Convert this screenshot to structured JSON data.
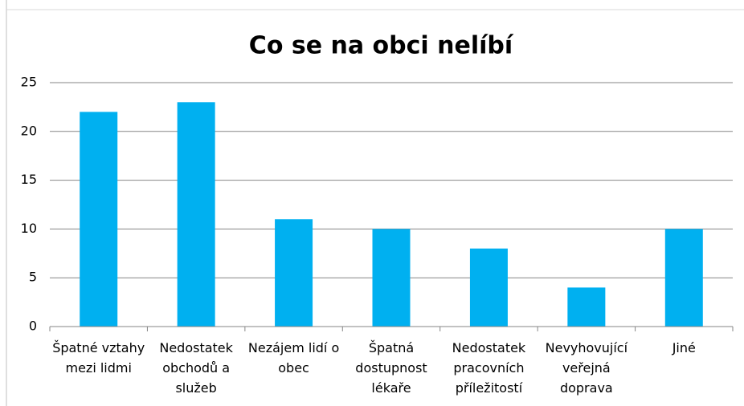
{
  "chart_data": {
    "type": "bar",
    "title": "Co se na obci nelíbí",
    "categories": [
      "Špatné vztahy mezi lidmi",
      "Nedostatek obchodů a služeb",
      "Nezájem lidí o obec",
      "Špatná dostupnost lékaře",
      "Nedostatek pracovních příležitostí",
      "Nevyhovující veřejná doprava",
      "Jiné"
    ],
    "values": [
      22,
      23,
      11,
      10,
      8,
      4,
      10
    ],
    "color": "#00b0f0",
    "ylim": [
      0,
      25
    ],
    "yticks": [
      0,
      5,
      10,
      15,
      20,
      25
    ],
    "grid": true
  }
}
